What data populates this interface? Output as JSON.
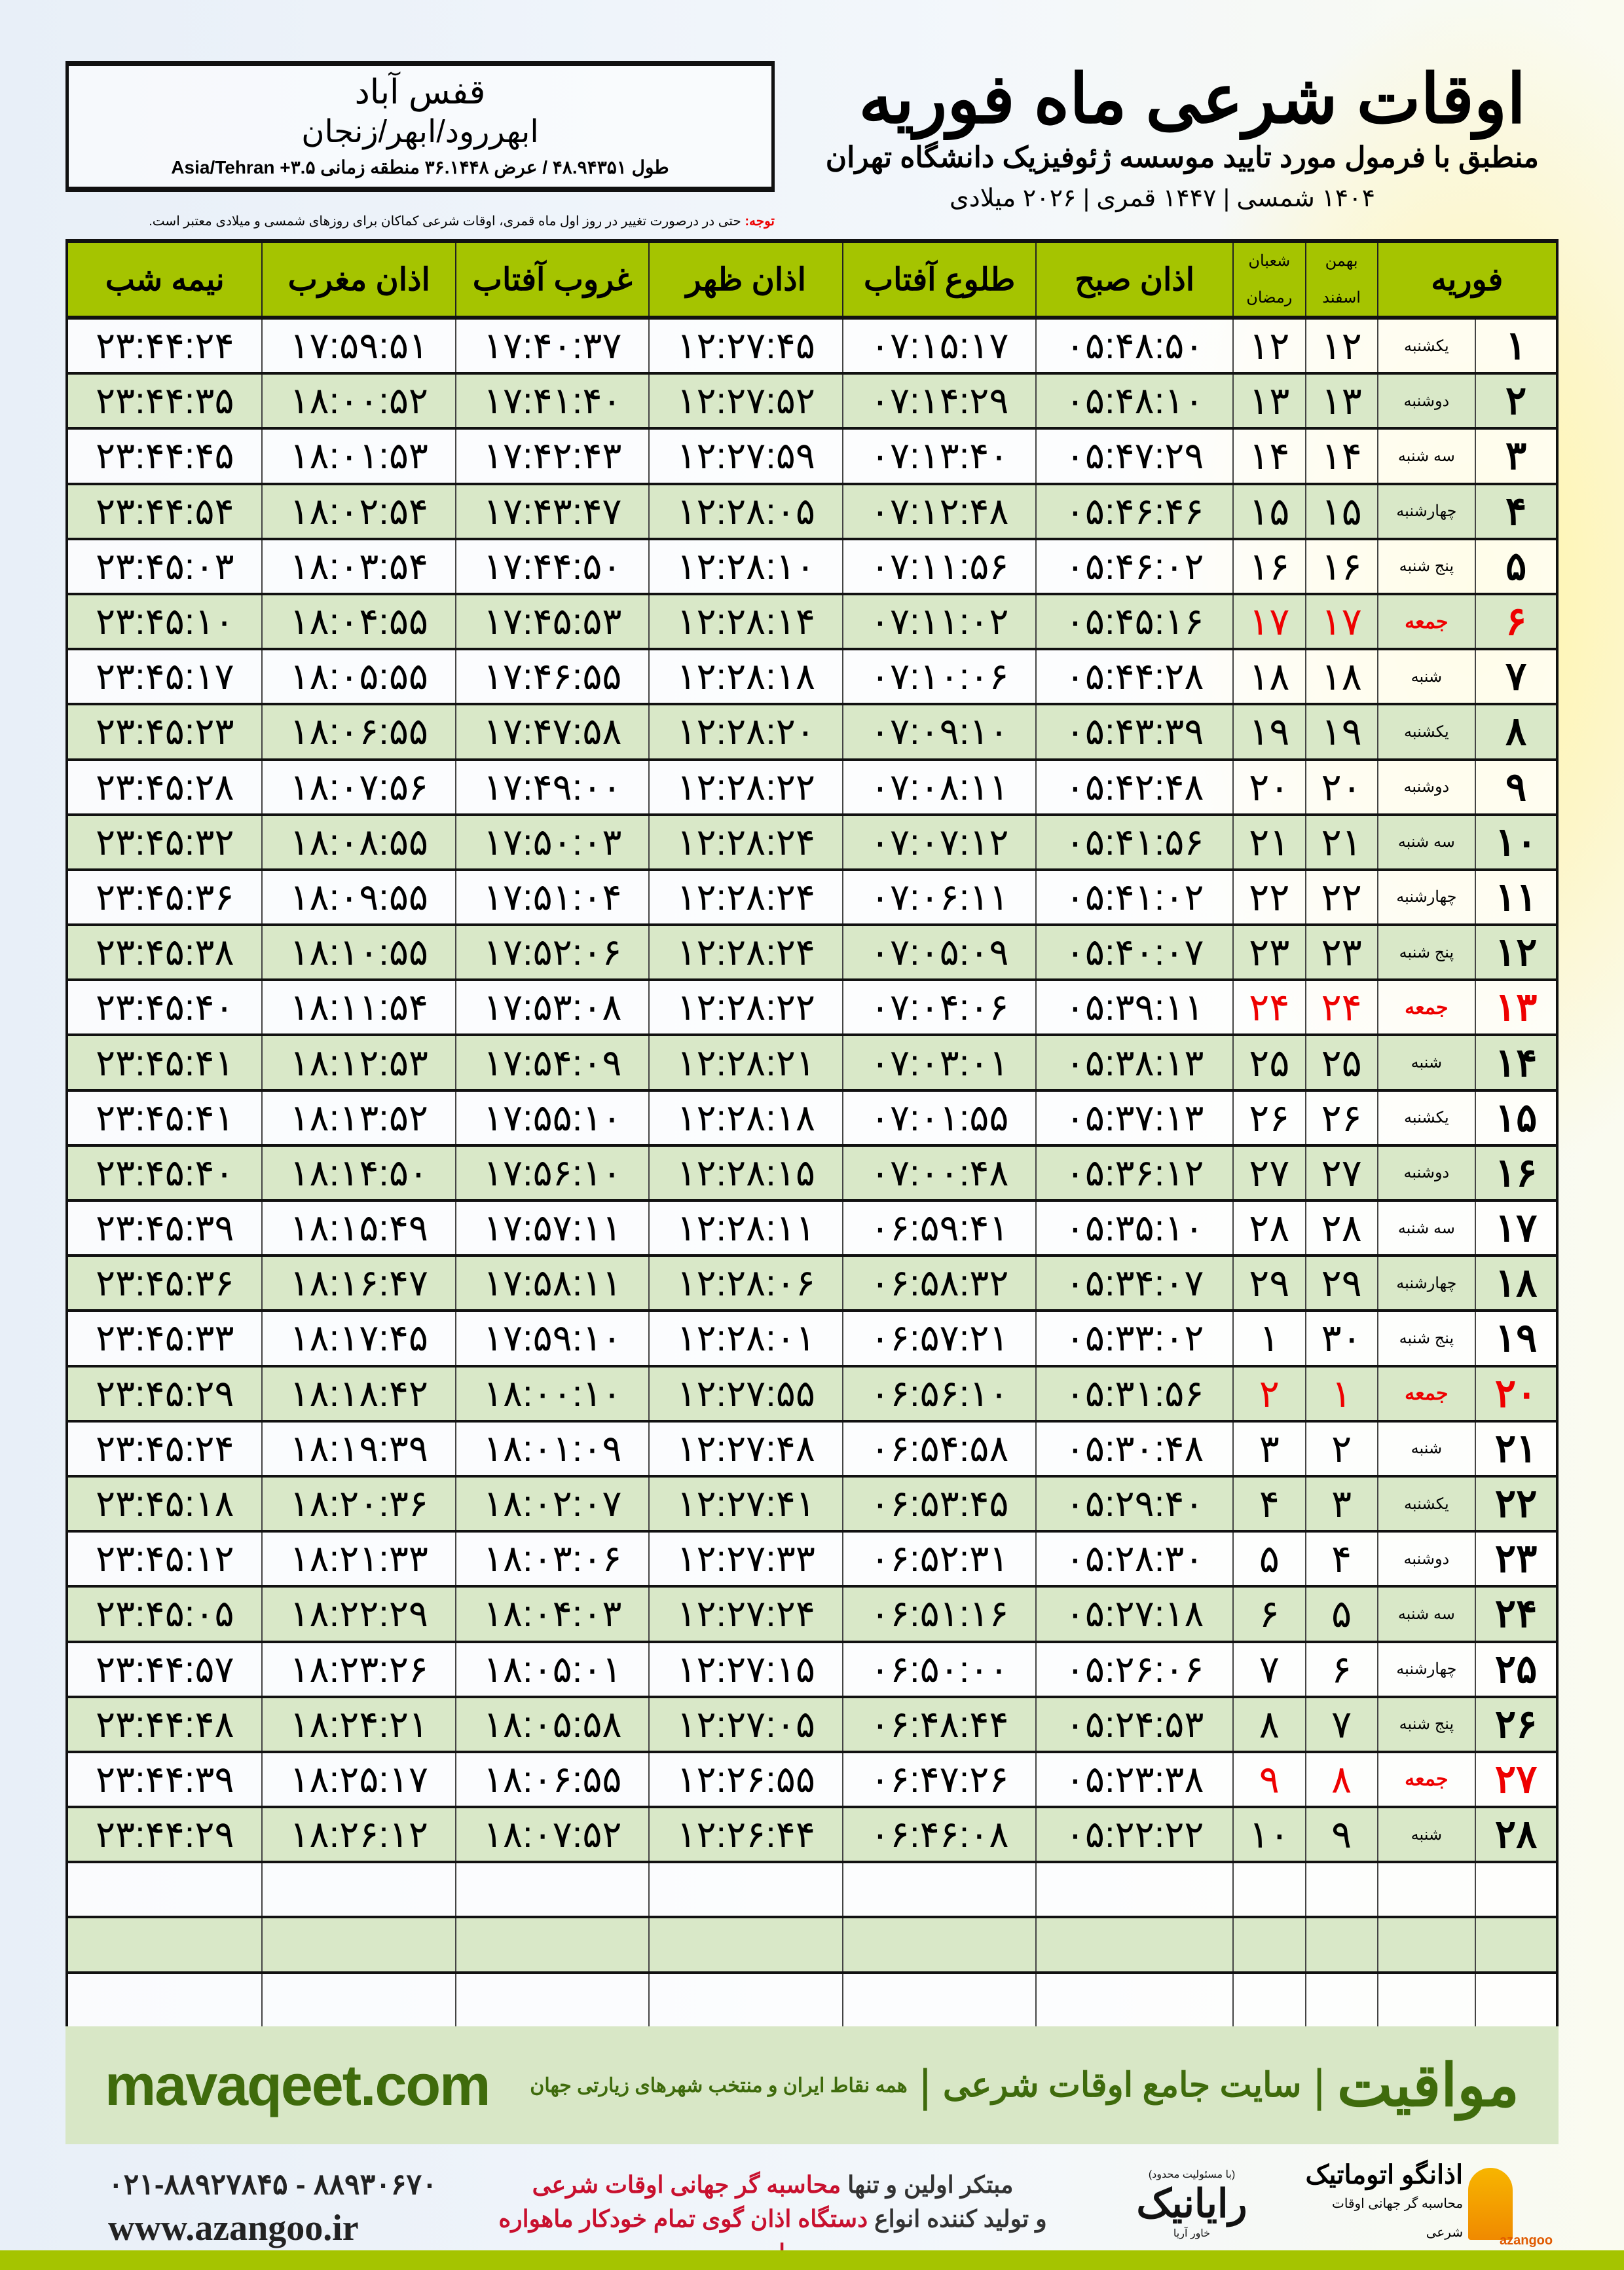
{
  "location": {
    "city": "قفس آباد",
    "region": "ابهررود/ابهر/زنجان",
    "coords": "طول ۴۸.۹۴۳۵۱ / عرض ۳۶.۱۴۴۸ منطقه زمانی ۳.۵+ Asia/Tehran"
  },
  "header": {
    "title": "اوقات شرعی ماه فوریه",
    "subtitle": "منطبق با فرمول مورد تایید موسسه ژئوفیزیک دانشگاه تهران",
    "dates": "۱۴۰۴ شمسی | ۱۴۴۷ قمری | ۲۰۲۶ میلادی"
  },
  "note": {
    "label": "توجه:",
    "text": " حتی در درصورت تغییر در روز اول ماه قمری، اوقات شرعی کماکان برای روزهای شمسی و میلادی معتبر است."
  },
  "columns": {
    "midnight": "نیمه شب",
    "maghrib": "اذان مغرب",
    "sunset": "غروب آفتاب",
    "dhuhr": "اذان ظهر",
    "sunrise": "طلوع آفتاب",
    "fajr": "اذان صبح",
    "hijri_top": "شعبان",
    "hijri_bottom": "رمضان",
    "shamsi_top": "بهمن",
    "shamsi_bottom": "اسفند",
    "month": "فوریه"
  },
  "colors": {
    "header_green": "#a5c400",
    "row_green": "#d9e8c8",
    "friday_red": "#e00000",
    "brand_green": "#3f6b0c"
  },
  "rows": [
    {
      "day": "۱",
      "weekday": "یکشنبه",
      "shamsi": "۱۲",
      "hijri": "۱۲",
      "fajr": "۰۵:۴۸:۵۰",
      "sunrise": "۰۷:۱۵:۱۷",
      "dhuhr": "۱۲:۲۷:۴۵",
      "sunset": "۱۷:۴۰:۳۷",
      "maghrib": "۱۷:۵۹:۵۱",
      "midnight": "۲۳:۴۴:۲۴"
    },
    {
      "day": "۲",
      "weekday": "دوشنبه",
      "shamsi": "۱۳",
      "hijri": "۱۳",
      "fajr": "۰۵:۴۸:۱۰",
      "sunrise": "۰۷:۱۴:۲۹",
      "dhuhr": "۱۲:۲۷:۵۲",
      "sunset": "۱۷:۴۱:۴۰",
      "maghrib": "۱۸:۰۰:۵۲",
      "midnight": "۲۳:۴۴:۳۵"
    },
    {
      "day": "۳",
      "weekday": "سه شنبه",
      "shamsi": "۱۴",
      "hijri": "۱۴",
      "fajr": "۰۵:۴۷:۲۹",
      "sunrise": "۰۷:۱۳:۴۰",
      "dhuhr": "۱۲:۲۷:۵۹",
      "sunset": "۱۷:۴۲:۴۳",
      "maghrib": "۱۸:۰۱:۵۳",
      "midnight": "۲۳:۴۴:۴۵"
    },
    {
      "day": "۴",
      "weekday": "چهارشنبه",
      "shamsi": "۱۵",
      "hijri": "۱۵",
      "fajr": "۰۵:۴۶:۴۶",
      "sunrise": "۰۷:۱۲:۴۸",
      "dhuhr": "۱۲:۲۸:۰۵",
      "sunset": "۱۷:۴۳:۴۷",
      "maghrib": "۱۸:۰۲:۵۴",
      "midnight": "۲۳:۴۴:۵۴"
    },
    {
      "day": "۵",
      "weekday": "پنج شنبه",
      "shamsi": "۱۶",
      "hijri": "۱۶",
      "fajr": "۰۵:۴۶:۰۲",
      "sunrise": "۰۷:۱۱:۵۶",
      "dhuhr": "۱۲:۲۸:۱۰",
      "sunset": "۱۷:۴۴:۵۰",
      "maghrib": "۱۸:۰۳:۵۴",
      "midnight": "۲۳:۴۵:۰۳"
    },
    {
      "day": "۶",
      "weekday": "جمعه",
      "shamsi": "۱۷",
      "hijri": "۱۷",
      "fajr": "۰۵:۴۵:۱۶",
      "sunrise": "۰۷:۱۱:۰۲",
      "dhuhr": "۱۲:۲۸:۱۴",
      "sunset": "۱۷:۴۵:۵۳",
      "maghrib": "۱۸:۰۴:۵۵",
      "midnight": "۲۳:۴۵:۱۰",
      "friday": true
    },
    {
      "day": "۷",
      "weekday": "شنبه",
      "shamsi": "۱۸",
      "hijri": "۱۸",
      "fajr": "۰۵:۴۴:۲۸",
      "sunrise": "۰۷:۱۰:۰۶",
      "dhuhr": "۱۲:۲۸:۱۸",
      "sunset": "۱۷:۴۶:۵۵",
      "maghrib": "۱۸:۰۵:۵۵",
      "midnight": "۲۳:۴۵:۱۷"
    },
    {
      "day": "۸",
      "weekday": "یکشنبه",
      "shamsi": "۱۹",
      "hijri": "۱۹",
      "fajr": "۰۵:۴۳:۳۹",
      "sunrise": "۰۷:۰۹:۱۰",
      "dhuhr": "۱۲:۲۸:۲۰",
      "sunset": "۱۷:۴۷:۵۸",
      "maghrib": "۱۸:۰۶:۵۵",
      "midnight": "۲۳:۴۵:۲۳"
    },
    {
      "day": "۹",
      "weekday": "دوشنبه",
      "shamsi": "۲۰",
      "hijri": "۲۰",
      "fajr": "۰۵:۴۲:۴۸",
      "sunrise": "۰۷:۰۸:۱۱",
      "dhuhr": "۱۲:۲۸:۲۲",
      "sunset": "۱۷:۴۹:۰۰",
      "maghrib": "۱۸:۰۷:۵۶",
      "midnight": "۲۳:۴۵:۲۸"
    },
    {
      "day": "۱۰",
      "weekday": "سه شنبه",
      "shamsi": "۲۱",
      "hijri": "۲۱",
      "fajr": "۰۵:۴۱:۵۶",
      "sunrise": "۰۷:۰۷:۱۲",
      "dhuhr": "۱۲:۲۸:۲۴",
      "sunset": "۱۷:۵۰:۰۳",
      "maghrib": "۱۸:۰۸:۵۵",
      "midnight": "۲۳:۴۵:۳۲"
    },
    {
      "day": "۱۱",
      "weekday": "چهارشنبه",
      "shamsi": "۲۲",
      "hijri": "۲۲",
      "fajr": "۰۵:۴۱:۰۲",
      "sunrise": "۰۷:۰۶:۱۱",
      "dhuhr": "۱۲:۲۸:۲۴",
      "sunset": "۱۷:۵۱:۰۴",
      "maghrib": "۱۸:۰۹:۵۵",
      "midnight": "۲۳:۴۵:۳۶"
    },
    {
      "day": "۱۲",
      "weekday": "پنج شنبه",
      "shamsi": "۲۳",
      "hijri": "۲۳",
      "fajr": "۰۵:۴۰:۰۷",
      "sunrise": "۰۷:۰۵:۰۹",
      "dhuhr": "۱۲:۲۸:۲۴",
      "sunset": "۱۷:۵۲:۰۶",
      "maghrib": "۱۸:۱۰:۵۵",
      "midnight": "۲۳:۴۵:۳۸"
    },
    {
      "day": "۱۳",
      "weekday": "جمعه",
      "shamsi": "۲۴",
      "hijri": "۲۴",
      "fajr": "۰۵:۳۹:۱۱",
      "sunrise": "۰۷:۰۴:۰۶",
      "dhuhr": "۱۲:۲۸:۲۲",
      "sunset": "۱۷:۵۳:۰۸",
      "maghrib": "۱۸:۱۱:۵۴",
      "midnight": "۲۳:۴۵:۴۰",
      "friday": true
    },
    {
      "day": "۱۴",
      "weekday": "شنبه",
      "shamsi": "۲۵",
      "hijri": "۲۵",
      "fajr": "۰۵:۳۸:۱۳",
      "sunrise": "۰۷:۰۳:۰۱",
      "dhuhr": "۱۲:۲۸:۲۱",
      "sunset": "۱۷:۵۴:۰۹",
      "maghrib": "۱۸:۱۲:۵۳",
      "midnight": "۲۳:۴۵:۴۱"
    },
    {
      "day": "۱۵",
      "weekday": "یکشنبه",
      "shamsi": "۲۶",
      "hijri": "۲۶",
      "fajr": "۰۵:۳۷:۱۳",
      "sunrise": "۰۷:۰۱:۵۵",
      "dhuhr": "۱۲:۲۸:۱۸",
      "sunset": "۱۷:۵۵:۱۰",
      "maghrib": "۱۸:۱۳:۵۲",
      "midnight": "۲۳:۴۵:۴۱"
    },
    {
      "day": "۱۶",
      "weekday": "دوشنبه",
      "shamsi": "۲۷",
      "hijri": "۲۷",
      "fajr": "۰۵:۳۶:۱۲",
      "sunrise": "۰۷:۰۰:۴۸",
      "dhuhr": "۱۲:۲۸:۱۵",
      "sunset": "۱۷:۵۶:۱۰",
      "maghrib": "۱۸:۱۴:۵۰",
      "midnight": "۲۳:۴۵:۴۰"
    },
    {
      "day": "۱۷",
      "weekday": "سه شنبه",
      "shamsi": "۲۸",
      "hijri": "۲۸",
      "fajr": "۰۵:۳۵:۱۰",
      "sunrise": "۰۶:۵۹:۴۱",
      "dhuhr": "۱۲:۲۸:۱۱",
      "sunset": "۱۷:۵۷:۱۱",
      "maghrib": "۱۸:۱۵:۴۹",
      "midnight": "۲۳:۴۵:۳۹"
    },
    {
      "day": "۱۸",
      "weekday": "چهارشنبه",
      "shamsi": "۲۹",
      "hijri": "۲۹",
      "fajr": "۰۵:۳۴:۰۷",
      "sunrise": "۰۶:۵۸:۳۲",
      "dhuhr": "۱۲:۲۸:۰۶",
      "sunset": "۱۷:۵۸:۱۱",
      "maghrib": "۱۸:۱۶:۴۷",
      "midnight": "۲۳:۴۵:۳۶"
    },
    {
      "day": "۱۹",
      "weekday": "پنج شنبه",
      "shamsi": "۳۰",
      "hijri": "۱",
      "fajr": "۰۵:۳۳:۰۲",
      "sunrise": "۰۶:۵۷:۲۱",
      "dhuhr": "۱۲:۲۸:۰۱",
      "sunset": "۱۷:۵۹:۱۰",
      "maghrib": "۱۸:۱۷:۴۵",
      "midnight": "۲۳:۴۵:۳۳"
    },
    {
      "day": "۲۰",
      "weekday": "جمعه",
      "shamsi": "۱",
      "hijri": "۲",
      "fajr": "۰۵:۳۱:۵۶",
      "sunrise": "۰۶:۵۶:۱۰",
      "dhuhr": "۱۲:۲۷:۵۵",
      "sunset": "۱۸:۰۰:۱۰",
      "maghrib": "۱۸:۱۸:۴۲",
      "midnight": "۲۳:۴۵:۲۹",
      "friday": true
    },
    {
      "day": "۲۱",
      "weekday": "شنبه",
      "shamsi": "۲",
      "hijri": "۳",
      "fajr": "۰۵:۳۰:۴۸",
      "sunrise": "۰۶:۵۴:۵۸",
      "dhuhr": "۱۲:۲۷:۴۸",
      "sunset": "۱۸:۰۱:۰۹",
      "maghrib": "۱۸:۱۹:۳۹",
      "midnight": "۲۳:۴۵:۲۴"
    },
    {
      "day": "۲۲",
      "weekday": "یکشنبه",
      "shamsi": "۳",
      "hijri": "۴",
      "fajr": "۰۵:۲۹:۴۰",
      "sunrise": "۰۶:۵۳:۴۵",
      "dhuhr": "۱۲:۲۷:۴۱",
      "sunset": "۱۸:۰۲:۰۷",
      "maghrib": "۱۸:۲۰:۳۶",
      "midnight": "۲۳:۴۵:۱۸"
    },
    {
      "day": "۲۳",
      "weekday": "دوشنبه",
      "shamsi": "۴",
      "hijri": "۵",
      "fajr": "۰۵:۲۸:۳۰",
      "sunrise": "۰۶:۵۲:۳۱",
      "dhuhr": "۱۲:۲۷:۳۳",
      "sunset": "۱۸:۰۳:۰۶",
      "maghrib": "۱۸:۲۱:۳۳",
      "midnight": "۲۳:۴۵:۱۲"
    },
    {
      "day": "۲۴",
      "weekday": "سه شنبه",
      "shamsi": "۵",
      "hijri": "۶",
      "fajr": "۰۵:۲۷:۱۸",
      "sunrise": "۰۶:۵۱:۱۶",
      "dhuhr": "۱۲:۲۷:۲۴",
      "sunset": "۱۸:۰۴:۰۳",
      "maghrib": "۱۸:۲۲:۲۹",
      "midnight": "۲۳:۴۵:۰۵"
    },
    {
      "day": "۲۵",
      "weekday": "چهارشنبه",
      "shamsi": "۶",
      "hijri": "۷",
      "fajr": "۰۵:۲۶:۰۶",
      "sunrise": "۰۶:۵۰:۰۰",
      "dhuhr": "۱۲:۲۷:۱۵",
      "sunset": "۱۸:۰۵:۰۱",
      "maghrib": "۱۸:۲۳:۲۶",
      "midnight": "۲۳:۴۴:۵۷"
    },
    {
      "day": "۲۶",
      "weekday": "پنج شنبه",
      "shamsi": "۷",
      "hijri": "۸",
      "fajr": "۰۵:۲۴:۵۳",
      "sunrise": "۰۶:۴۸:۴۴",
      "dhuhr": "۱۲:۲۷:۰۵",
      "sunset": "۱۸:۰۵:۵۸",
      "maghrib": "۱۸:۲۴:۲۱",
      "midnight": "۲۳:۴۴:۴۸"
    },
    {
      "day": "۲۷",
      "weekday": "جمعه",
      "shamsi": "۸",
      "hijri": "۹",
      "fajr": "۰۵:۲۳:۳۸",
      "sunrise": "۰۶:۴۷:۲۶",
      "dhuhr": "۱۲:۲۶:۵۵",
      "sunset": "۱۸:۰۶:۵۵",
      "maghrib": "۱۸:۲۵:۱۷",
      "midnight": "۲۳:۴۴:۳۹",
      "friday": true
    },
    {
      "day": "۲۸",
      "weekday": "شنبه",
      "shamsi": "۹",
      "hijri": "۱۰",
      "fajr": "۰۵:۲۲:۲۲",
      "sunrise": "۰۶:۴۶:۰۸",
      "dhuhr": "۱۲:۲۶:۴۴",
      "sunset": "۱۸:۰۷:۵۲",
      "maghrib": "۱۸:۲۶:۱۲",
      "midnight": "۲۳:۴۴:۲۹"
    }
  ],
  "band": {
    "url": "mavaqeet.com",
    "brand": "مواقیت",
    "tagline": "سایت جامع اوقات شرعی",
    "sub": "همه نقاط ایران و منتخب شهرهای زیارتی جهان"
  },
  "footer": {
    "phone": "۰۲۱-۸۸۹۲۷۸۴۵ - ۸۸۹۳۰۶۷۰",
    "site": "www.azangoo.ir",
    "slogan1a": "مبتکر اولین و تنها ",
    "slogan1b": "محاسبه گر جهانی اوقات شرعی",
    "slogan2a": "و تولید کننده انواع ",
    "slogan2b": "دستگاه اذان گوی تمام خودکار ماهواره ای",
    "logo_rayanik": "رایانیک",
    "logo_rayanik_sub": "خاور آریا",
    "logo_rayanik_note": "(با مسئولیت محدود)",
    "logo_azangoo": "اذانگو اتوماتیک",
    "logo_azangoo_sub": "محاسبه گر جهانی اوقات شرعی",
    "logo_azangoo_en": "azangoo"
  }
}
